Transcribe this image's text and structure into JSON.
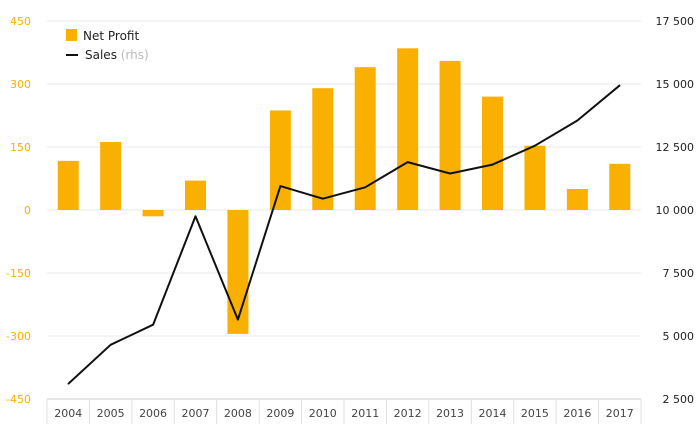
{
  "chart_data": {
    "type": "bar+line",
    "title": "",
    "categories": [
      "2004",
      "2005",
      "2006",
      "2007",
      "2008",
      "2009",
      "2010",
      "2011",
      "2012",
      "2013",
      "2014",
      "2015",
      "2016",
      "2017"
    ],
    "series": [
      {
        "name": "Net Profit",
        "type": "bar",
        "axis": "left",
        "color": "#f9b000",
        "values": [
          117,
          162,
          -15,
          70,
          -295,
          237,
          290,
          340,
          385,
          355,
          270,
          153,
          50,
          110
        ]
      },
      {
        "name": "Sales",
        "name_suffix": "(rhs)",
        "type": "line",
        "axis": "right",
        "color": "#111111",
        "values": [
          3100,
          4650,
          5450,
          9750,
          5650,
          10950,
          10450,
          10900,
          11900,
          11450,
          11800,
          12550,
          13550,
          14950
        ]
      }
    ],
    "y_left": {
      "range": [
        -450,
        450
      ],
      "ticks": [
        450,
        300,
        150,
        0,
        -150,
        -300,
        -450
      ],
      "tick_labels": [
        "450",
        "300",
        "150",
        "0",
        "-150",
        "-300",
        "-450"
      ],
      "tick_color": "#f9b000"
    },
    "y_right": {
      "range": [
        2500,
        17500
      ],
      "ticks": [
        17500,
        15000,
        12500,
        10000,
        7500,
        5000,
        2500
      ],
      "tick_labels": [
        "17 500",
        "15 000",
        "12 500",
        "10 000",
        "7 500",
        "5 000",
        "2 500"
      ],
      "tick_color": "#222222"
    },
    "grid": true,
    "legend_position": "top-left"
  }
}
